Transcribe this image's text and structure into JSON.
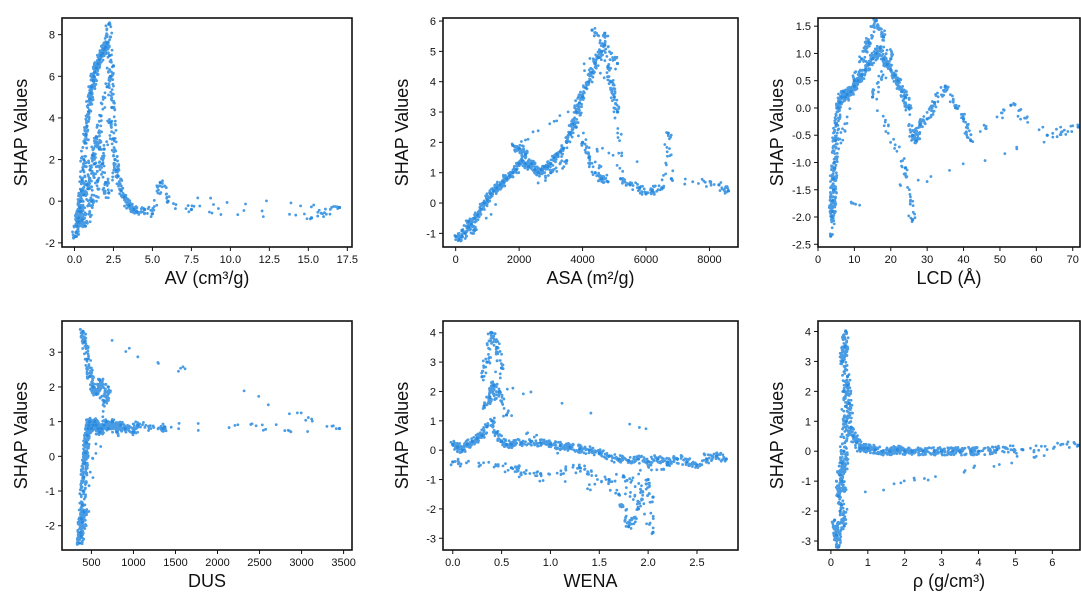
{
  "figure": {
    "point_color": "#2a8bdf",
    "panels": [
      "av",
      "asa",
      "lcd",
      "dus",
      "wena",
      "rho"
    ]
  },
  "chart_data": [
    {
      "id": "av",
      "type": "scatter",
      "xlabel": "AV (cm³/g)",
      "ylabel": "SHAP Values",
      "xlim": [
        -0.8,
        17.8
      ],
      "ylim": [
        -2.2,
        8.8
      ],
      "xticks": [
        "0.0",
        "2.5",
        "5.0",
        "7.5",
        "10.0",
        "12.5",
        "15.0",
        "17.5"
      ],
      "yticks": [
        "-2",
        "0",
        "2",
        "4",
        "6",
        "8"
      ],
      "x": [
        0.05,
        0.1,
        0.15,
        0.2,
        0.25,
        0.3,
        0.35,
        0.4,
        0.45,
        0.5,
        0.55,
        0.6,
        0.7,
        0.75,
        0.8,
        0.9,
        1.0,
        1.05,
        1.1,
        1.2,
        1.25,
        1.3,
        1.4,
        1.5,
        1.6,
        1.7,
        1.8,
        1.9,
        2.0,
        2.1,
        2.2,
        2.25,
        2.3,
        2.4,
        2.5,
        2.6,
        2.8,
        3.0,
        3.2,
        3.5,
        3.8,
        4.0,
        4.5,
        5.0,
        5.5,
        6.0,
        7.5,
        15.2,
        17.0,
        0.6,
        0.8,
        1.0,
        1.2,
        1.4,
        1.6,
        1.8,
        2.0,
        2.2,
        0.4,
        0.7,
        1.1,
        1.5,
        1.9,
        2.3,
        2.7,
        0.3,
        0.5,
        0.9,
        1.3,
        1.7,
        2.1,
        2.5
      ],
      "y": [
        -1.7,
        -1.5,
        -1.2,
        -1.0,
        -0.8,
        -0.5,
        -0.3,
        0.0,
        0.5,
        1.0,
        1.5,
        2.0,
        2.8,
        3.2,
        3.6,
        4.3,
        4.9,
        5.2,
        5.5,
        5.8,
        6.0,
        6.2,
        6.4,
        6.6,
        6.8,
        7.0,
        7.1,
        7.3,
        7.4,
        7.6,
        8.5,
        7.0,
        6.0,
        4.5,
        3.0,
        2.0,
        1.2,
        0.5,
        0.2,
        -0.2,
        -0.4,
        -0.5,
        -0.4,
        -0.6,
        0.9,
        0.0,
        -0.4,
        -0.8,
        -0.3,
        0.3,
        0.8,
        1.5,
        2.2,
        3.1,
        2.5,
        1.8,
        0.9,
        0.4,
        -0.5,
        -1.2,
        0.0,
        1.0,
        2.5,
        3.8,
        1.5,
        -1.0,
        -0.9,
        0.6,
        1.8,
        4.1,
        5.5,
        6.5
      ]
    },
    {
      "id": "asa",
      "type": "scatter",
      "xlabel": "ASA (m²/g)",
      "ylabel": "SHAP Values",
      "xlim": [
        -400,
        8900
      ],
      "ylim": [
        -1.45,
        6.1
      ],
      "xticks": [
        "0",
        "2000",
        "4000",
        "6000",
        "8000"
      ],
      "yticks": [
        "-1",
        "0",
        "1",
        "2",
        "3",
        "4",
        "5",
        "6"
      ],
      "x": [
        0,
        100,
        200,
        300,
        400,
        500,
        600,
        700,
        800,
        900,
        1000,
        1100,
        1200,
        1300,
        1400,
        1500,
        1600,
        1700,
        1800,
        1900,
        2000,
        2100,
        2200,
        2300,
        2400,
        2500,
        2600,
        2700,
        2800,
        2900,
        3000,
        3100,
        3200,
        3300,
        3400,
        3500,
        3600,
        3700,
        3800,
        3900,
        4000,
        4100,
        4200,
        4300,
        4400,
        4500,
        4600,
        4700,
        4800,
        4900,
        5000,
        5100,
        5200,
        5500,
        5800,
        6000,
        6200,
        6500,
        6700,
        6800,
        8300,
        8600,
        4000,
        4200,
        4400,
        4600,
        4800,
        3800,
        4300,
        4700,
        5100,
        2000,
        2200,
        1800,
        3000,
        3500,
        200,
        400,
        600
      ],
      "y": [
        -1.1,
        -1.2,
        -1.1,
        -1.0,
        -0.8,
        -0.7,
        -0.5,
        -0.4,
        -0.2,
        0.0,
        0.1,
        0.3,
        0.4,
        0.5,
        0.6,
        0.7,
        0.8,
        0.9,
        1.0,
        1.1,
        1.3,
        1.4,
        1.3,
        1.2,
        1.3,
        1.1,
        1.0,
        1.1,
        1.2,
        1.2,
        1.3,
        1.5,
        1.6,
        1.7,
        1.8,
        2.0,
        2.3,
        2.6,
        3.0,
        3.3,
        3.5,
        3.8,
        4.0,
        4.3,
        4.6,
        4.8,
        5.0,
        5.6,
        4.5,
        4.0,
        3.5,
        3.0,
        0.8,
        0.6,
        0.5,
        0.3,
        0.4,
        0.5,
        2.3,
        0.8,
        0.6,
        0.4,
        2.0,
        1.5,
        1.0,
        0.8,
        0.7,
        2.5,
        5.7,
        5.2,
        4.6,
        1.8,
        1.6,
        1.9,
        1.0,
        1.4,
        -0.9,
        -0.6,
        -0.9
      ]
    },
    {
      "id": "lcd",
      "type": "scatter",
      "xlabel": "LCD (Å)",
      "ylabel": "SHAP Values",
      "xlim": [
        0,
        72
      ],
      "ylim": [
        -2.55,
        1.65
      ],
      "xticks": [
        "0",
        "10",
        "20",
        "30",
        "40",
        "50",
        "60",
        "70"
      ],
      "yticks": [
        "-2.5",
        "-2.0",
        "-1.5",
        "-1.0",
        "-0.5",
        "0.0",
        "0.5",
        "1.0",
        "1.5"
      ],
      "x": [
        3.5,
        3.8,
        4.0,
        4.2,
        4.5,
        4.8,
        5.0,
        5.5,
        6.0,
        6.5,
        7.0,
        7.5,
        8.0,
        9.0,
        10.0,
        11.0,
        12.0,
        13.0,
        14.0,
        15.0,
        16.0,
        17.0,
        18.0,
        19.0,
        20.0,
        21.0,
        22.0,
        23.0,
        24.0,
        25.0,
        26.0,
        27.0,
        28.0,
        30.0,
        32.0,
        35.0,
        38.0,
        40.0,
        42.0,
        53.0,
        63.0,
        71.5,
        4.0,
        4.3,
        4.6,
        10.0,
        12.0,
        14.0,
        16.0,
        18.0,
        20.0,
        15.0,
        24.0,
        26.0
      ],
      "y": [
        -2.35,
        -2.0,
        -1.7,
        -1.3,
        -1.0,
        -0.6,
        -0.3,
        0.0,
        0.1,
        0.2,
        0.3,
        0.2,
        0.25,
        0.3,
        0.4,
        0.5,
        0.6,
        0.7,
        0.8,
        0.9,
        1.0,
        1.1,
        0.9,
        0.8,
        0.7,
        0.6,
        0.5,
        0.3,
        0.2,
        0.0,
        -0.5,
        -0.6,
        -0.3,
        -0.2,
        0.1,
        0.4,
        0.0,
        -0.2,
        -0.6,
        0.05,
        -0.5,
        -0.35,
        -1.9,
        -1.5,
        -1.1,
        0.5,
        0.9,
        1.2,
        1.6,
        1.3,
        0.9,
        0.2,
        -1.1,
        -2.05
      ]
    },
    {
      "id": "dus",
      "type": "scatter",
      "xlabel": "DUS",
      "ylabel": "SHAP Values",
      "xlim": [
        150,
        3600
      ],
      "ylim": [
        -2.7,
        3.9
      ],
      "xticks": [
        "500",
        "1000",
        "1500",
        "2000",
        "2500",
        "3000",
        "3500"
      ],
      "yticks": [
        "-2",
        "-1",
        "0",
        "1",
        "2",
        "3"
      ],
      "x": [
        360,
        370,
        380,
        390,
        400,
        410,
        420,
        430,
        440,
        450,
        460,
        470,
        480,
        500,
        520,
        540,
        560,
        580,
        600,
        620,
        650,
        680,
        700,
        750,
        800,
        850,
        900,
        1000,
        1050,
        1350,
        1370,
        3450,
        400,
        420,
        450,
        480,
        520,
        560,
        600,
        650,
        700,
        380,
        395,
        410
      ],
      "y": [
        -2.5,
        -2.2,
        -1.8,
        -1.4,
        -1.0,
        -0.6,
        -0.2,
        0.1,
        0.4,
        0.6,
        0.8,
        0.9,
        1.0,
        0.8,
        0.9,
        1.0,
        0.9,
        0.8,
        0.7,
        0.8,
        0.9,
        1.0,
        0.8,
        1.0,
        0.7,
        0.9,
        0.8,
        0.7,
        0.9,
        0.8,
        0.85,
        0.8,
        3.6,
        3.3,
        2.8,
        2.3,
        2.0,
        1.8,
        2.2,
        1.6,
        2.0,
        -2.3,
        -1.9,
        -1.6
      ]
    },
    {
      "id": "wena",
      "type": "scatter",
      "xlabel": "WENA",
      "ylabel": "SHAP Values",
      "xlim": [
        -0.1,
        2.92
      ],
      "ylim": [
        -3.4,
        4.4
      ],
      "xticks": [
        "0.0",
        "0.5",
        "1.0",
        "1.5",
        "2.0",
        "2.5"
      ],
      "yticks": [
        "-3",
        "-2",
        "-1",
        "0",
        "1",
        "2",
        "3",
        "4"
      ],
      "x": [
        0.0,
        0.05,
        0.1,
        0.15,
        0.2,
        0.25,
        0.3,
        0.35,
        0.4,
        0.45,
        0.5,
        0.55,
        0.6,
        0.7,
        0.8,
        0.9,
        1.0,
        1.1,
        1.2,
        1.3,
        1.4,
        1.5,
        1.6,
        1.7,
        1.8,
        1.9,
        2.0,
        2.1,
        2.2,
        2.3,
        2.4,
        2.5,
        2.6,
        2.7,
        2.8,
        0.3,
        0.35,
        0.4,
        0.45,
        0.5,
        0.38,
        0.42,
        0.32,
        0.48,
        0.55,
        1.7,
        1.8,
        1.9,
        2.0,
        2.05,
        1.75,
        2.05,
        0.0,
        0.6,
        0.9,
        1.3,
        1.6,
        2.2
      ],
      "y": [
        0.2,
        0.1,
        0.0,
        0.2,
        0.3,
        0.4,
        0.5,
        0.8,
        1.0,
        0.6,
        0.3,
        0.2,
        0.2,
        0.25,
        0.3,
        0.25,
        0.2,
        0.15,
        0.1,
        0.05,
        0.0,
        -0.1,
        -0.2,
        -0.3,
        -0.35,
        -0.3,
        -0.4,
        -0.3,
        -0.4,
        -0.3,
        -0.4,
        -0.5,
        -0.3,
        -0.2,
        -0.3,
        2.5,
        3.0,
        4.0,
        3.5,
        2.8,
        1.8,
        2.2,
        1.5,
        2.0,
        1.2,
        -1.5,
        -2.6,
        -2.0,
        -1.0,
        -2.8,
        -0.9,
        -1.6,
        -0.4,
        -0.6,
        -0.8,
        -0.6,
        -1.0,
        -0.5
      ]
    },
    {
      "id": "rho",
      "type": "scatter",
      "xlabel": "ρ (g/cm³)",
      "ylabel": "SHAP Values",
      "xlim": [
        -0.35,
        6.75
      ],
      "ylim": [
        -3.3,
        4.35
      ],
      "xticks": [
        "0",
        "1",
        "2",
        "3",
        "4",
        "5",
        "6"
      ],
      "yticks": [
        "-3",
        "-2",
        "-1",
        "0",
        "1",
        "2",
        "3",
        "4"
      ],
      "x": [
        0.1,
        0.15,
        0.2,
        0.25,
        0.3,
        0.35,
        0.4,
        0.45,
        0.5,
        0.55,
        0.6,
        0.7,
        0.8,
        0.9,
        1.0,
        1.2,
        1.4,
        1.6,
        1.8,
        2.0,
        2.2,
        2.5,
        2.8,
        3.0,
        3.3,
        3.5,
        3.8,
        4.0,
        4.5,
        5.2,
        6.7,
        0.2,
        0.25,
        0.3,
        0.35,
        0.4,
        0.32,
        0.38,
        0.42,
        0.36,
        0.28,
        0.45
      ],
      "y": [
        -2.3,
        -2.8,
        -3.2,
        -2.0,
        -1.0,
        0.0,
        1.5,
        2.5,
        1.6,
        0.8,
        0.5,
        0.3,
        0.1,
        0.1,
        0.1,
        0.05,
        0.0,
        0.0,
        0.05,
        0.0,
        0.0,
        0.0,
        0.0,
        0.0,
        0.0,
        0.0,
        0.0,
        0.0,
        0.05,
        0.05,
        0.2,
        -1.5,
        -0.8,
        -0.4,
        2.0,
        4.0,
        3.0,
        3.5,
        1.0,
        -2.5,
        -1.8,
        2.2
      ]
    }
  ]
}
